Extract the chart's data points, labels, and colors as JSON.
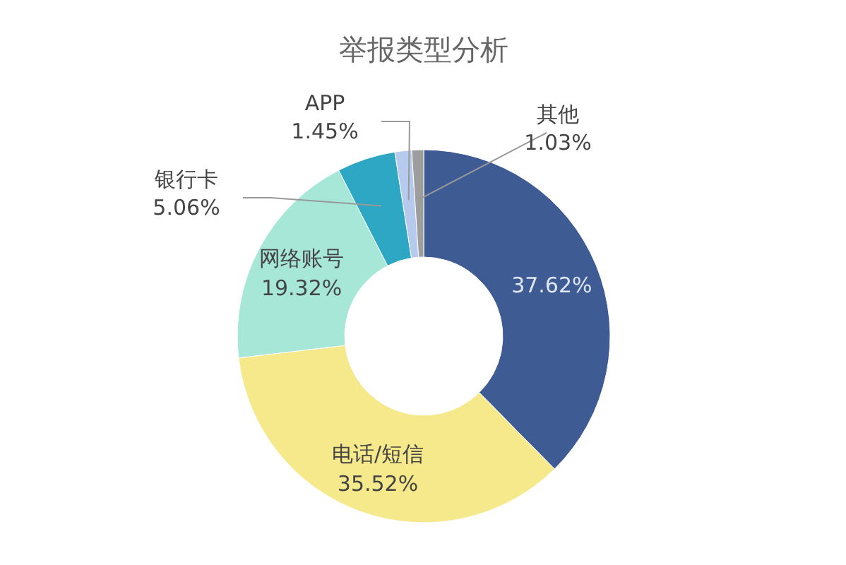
{
  "chart_data": {
    "type": "donut",
    "title": "举报类型分析",
    "categories": [
      null,
      "电话/短信",
      "网络账号",
      "银行卡",
      "APP",
      "其他"
    ],
    "values": [
      37.62,
      35.52,
      19.32,
      5.06,
      1.45,
      1.03
    ],
    "colors": [
      "#3f5b94",
      "#f6e98c",
      "#a6e7d8",
      "#2ea7c5",
      "#b6caee",
      "#9e9e9e"
    ],
    "value_labels": [
      "37.62%",
      "35.52%",
      "19.32%",
      "5.06%",
      "1.45%",
      "1.03%"
    ]
  }
}
